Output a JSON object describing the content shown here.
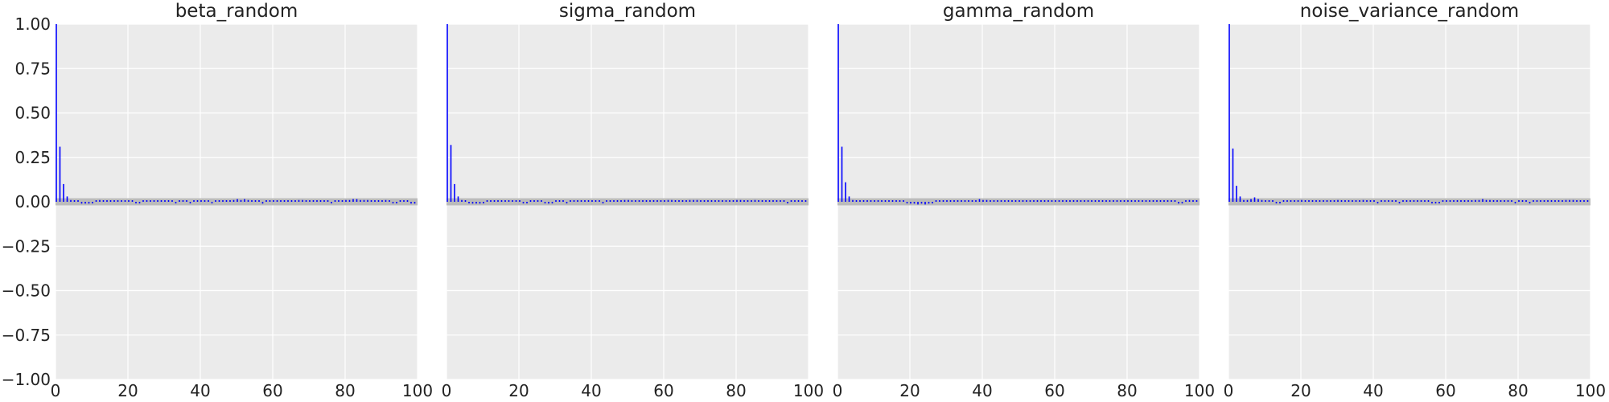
{
  "chart_data": [
    {
      "type": "bar",
      "title": "beta_random",
      "xlabel": "",
      "ylabel": "",
      "xlim": [
        0,
        100
      ],
      "ylim": [
        -1.0,
        1.0
      ],
      "xticks": [
        "0",
        "20",
        "40",
        "60",
        "80",
        "100"
      ],
      "yticks": [
        "−1.00",
        "−0.75",
        "−0.50",
        "−0.25",
        "0.00",
        "0.25",
        "0.50",
        "0.75",
        "1.00"
      ],
      "grid": true,
      "lags": [
        0,
        1,
        2,
        3,
        4,
        5,
        6,
        7,
        8,
        9,
        10,
        11,
        12,
        13,
        14,
        15,
        16,
        17,
        18,
        19,
        20,
        21,
        22,
        23,
        24,
        25,
        26,
        27,
        28,
        29,
        30,
        31,
        32,
        33,
        34,
        35,
        36,
        37,
        38,
        39,
        40,
        41,
        42,
        43,
        44,
        45,
        46,
        47,
        48,
        49,
        50,
        51,
        52,
        53,
        54,
        55,
        56,
        57,
        58,
        59,
        60,
        61,
        62,
        63,
        64,
        65,
        66,
        67,
        68,
        69,
        70,
        71,
        72,
        73,
        74,
        75,
        76,
        77,
        78,
        79,
        80,
        81,
        82,
        83,
        84,
        85,
        86,
        87,
        88,
        89,
        90,
        91,
        92,
        93,
        94,
        95,
        96,
        97,
        98,
        99
      ],
      "values": [
        1.0,
        0.31,
        0.1,
        0.03,
        0.01,
        0.005,
        0.0,
        -0.01,
        -0.01,
        -0.01,
        -0.005,
        0.005,
        0.01,
        0.0,
        0.005,
        0.005,
        0.0,
        0.0,
        0.005,
        0.005,
        0.0,
        0.005,
        -0.005,
        -0.005,
        0.0,
        0.005,
        0.005,
        0.0,
        0.0,
        0.005,
        0.005,
        0.0,
        0.0,
        -0.005,
        0.0,
        0.005,
        0.0,
        -0.005,
        0.0,
        0.005,
        0.005,
        0.005,
        0.0,
        -0.005,
        0.0,
        0.005,
        0.0,
        0.005,
        0.005,
        0.01,
        0.015,
        0.01,
        0.015,
        0.01,
        0.005,
        0.0,
        0.005,
        -0.01,
        0.0,
        0.005,
        0.005,
        0.0,
        0.005,
        0.0,
        0.005,
        0.0,
        0.005,
        0.01,
        0.01,
        0.005,
        0.005,
        0.0,
        0.005,
        0.0,
        0.005,
        0.0,
        -0.005,
        0.0,
        0.005,
        0.005,
        0.01,
        0.01,
        0.015,
        0.015,
        0.01,
        0.01,
        0.01,
        0.005,
        0.0,
        0.005,
        0.005,
        0.01,
        0.005,
        -0.005,
        -0.005,
        0.0,
        0.005,
        0.0,
        -0.01,
        -0.01
      ],
      "band": [
        -0.02,
        0.02
      ],
      "color": "#0000ff"
    },
    {
      "type": "bar",
      "title": "sigma_random",
      "xlabel": "",
      "ylabel": "",
      "xlim": [
        0,
        100
      ],
      "ylim": [
        -1.0,
        1.0
      ],
      "xticks": [
        "0",
        "20",
        "40",
        "60",
        "80",
        "100"
      ],
      "grid": true,
      "lags": [
        0,
        1,
        2,
        3,
        4,
        5,
        6,
        7,
        8,
        9,
        10,
        11,
        12,
        13,
        14,
        15,
        16,
        17,
        18,
        19,
        20,
        21,
        22,
        23,
        24,
        25,
        26,
        27,
        28,
        29,
        30,
        31,
        32,
        33,
        34,
        35,
        36,
        37,
        38,
        39,
        40,
        41,
        42,
        43,
        44,
        45,
        46,
        47,
        48,
        49,
        50,
        51,
        52,
        53,
        54,
        55,
        56,
        57,
        58,
        59,
        60,
        61,
        62,
        63,
        64,
        65,
        66,
        67,
        68,
        69,
        70,
        71,
        72,
        73,
        74,
        75,
        76,
        77,
        78,
        79,
        80,
        81,
        82,
        83,
        84,
        85,
        86,
        87,
        88,
        89,
        90,
        91,
        92,
        93,
        94,
        95,
        96,
        97,
        98,
        99
      ],
      "values": [
        1.0,
        0.32,
        0.1,
        0.03,
        0.01,
        0.0,
        -0.005,
        -0.01,
        -0.01,
        -0.01,
        -0.005,
        0.0,
        0.005,
        0.0,
        0.005,
        0.0,
        0.005,
        0.005,
        0.0,
        0.005,
        0.005,
        -0.005,
        -0.005,
        0.0,
        0.005,
        0.0,
        0.005,
        -0.005,
        -0.01,
        -0.005,
        0.0,
        0.005,
        0.005,
        -0.005,
        0.0,
        0.005,
        0.005,
        0.0,
        0.0,
        0.005,
        0.005,
        0.005,
        0.0,
        -0.005,
        0.0,
        0.005,
        0.0,
        0.005,
        0.005,
        0.01,
        0.01,
        0.005,
        0.005,
        0.0,
        0.005,
        0.005,
        0.005,
        0.005,
        0.0,
        0.005,
        0.005,
        0.01,
        0.01,
        0.005,
        0.005,
        0.0,
        0.005,
        0.01,
        0.01,
        0.01,
        0.005,
        0.005,
        0.0,
        0.005,
        0.0,
        0.0,
        0.005,
        0.005,
        0.0,
        0.005,
        0.01,
        0.01,
        0.005,
        0.005,
        0.005,
        0.01,
        0.005,
        0.005,
        0.0,
        0.005,
        0.0,
        0.005,
        0.005,
        0.0,
        -0.005,
        0.005,
        0.005,
        0.0,
        0.005,
        0.005
      ],
      "band": [
        -0.02,
        0.02
      ],
      "color": "#0000ff"
    },
    {
      "type": "bar",
      "title": "gamma_random",
      "xlabel": "",
      "ylabel": "",
      "xlim": [
        0,
        100
      ],
      "ylim": [
        -1.0,
        1.0
      ],
      "xticks": [
        "0",
        "20",
        "40",
        "60",
        "80",
        "100"
      ],
      "grid": true,
      "lags": [
        0,
        1,
        2,
        3,
        4,
        5,
        6,
        7,
        8,
        9,
        10,
        11,
        12,
        13,
        14,
        15,
        16,
        17,
        18,
        19,
        20,
        21,
        22,
        23,
        24,
        25,
        26,
        27,
        28,
        29,
        30,
        31,
        32,
        33,
        34,
        35,
        36,
        37,
        38,
        39,
        40,
        41,
        42,
        43,
        44,
        45,
        46,
        47,
        48,
        49,
        50,
        51,
        52,
        53,
        54,
        55,
        56,
        57,
        58,
        59,
        60,
        61,
        62,
        63,
        64,
        65,
        66,
        67,
        68,
        69,
        70,
        71,
        72,
        73,
        74,
        75,
        76,
        77,
        78,
        79,
        80,
        81,
        82,
        83,
        84,
        85,
        86,
        87,
        88,
        89,
        90,
        91,
        92,
        93,
        94,
        95,
        96,
        97,
        98,
        99
      ],
      "values": [
        1.0,
        0.31,
        0.11,
        0.03,
        0.01,
        0.005,
        0.0,
        0.0,
        0.005,
        0.005,
        0.0,
        0.005,
        0.005,
        0.0,
        0.005,
        0.005,
        0.0,
        0.005,
        0.005,
        -0.005,
        -0.01,
        -0.01,
        -0.015,
        -0.01,
        -0.015,
        -0.01,
        -0.005,
        0.0,
        0.005,
        0.005,
        0.005,
        0.005,
        0.0,
        0.005,
        0.0,
        0.005,
        0.005,
        0.0,
        0.005,
        0.015,
        0.01,
        0.01,
        0.005,
        0.005,
        0.0,
        0.005,
        0.0,
        0.005,
        0.0,
        0.005,
        0.005,
        0.005,
        0.0,
        0.005,
        0.005,
        0.0,
        0.005,
        0.005,
        0.005,
        0.005,
        0.0,
        0.005,
        0.005,
        0.0,
        0.005,
        0.0,
        0.005,
        0.005,
        0.0,
        0.005,
        0.005,
        0.0,
        0.005,
        0.005,
        0.0,
        0.005,
        0.005,
        0.005,
        0.0,
        0.005,
        0.0,
        0.005,
        0.005,
        0.0,
        0.005,
        0.005,
        0.0,
        0.005,
        0.005,
        0.005,
        0.0,
        0.005,
        0.005,
        0.0,
        -0.01,
        -0.005,
        0.005,
        0.01,
        0.005,
        0.0
      ],
      "band": [
        -0.02,
        0.02
      ],
      "color": "#0000ff"
    },
    {
      "type": "bar",
      "title": "noise_variance_random",
      "xlabel": "",
      "ylabel": "",
      "xlim": [
        0,
        100
      ],
      "ylim": [
        -1.0,
        1.0
      ],
      "xticks": [
        "0",
        "20",
        "40",
        "60",
        "80",
        "100"
      ],
      "grid": true,
      "lags": [
        0,
        1,
        2,
        3,
        4,
        5,
        6,
        7,
        8,
        9,
        10,
        11,
        12,
        13,
        14,
        15,
        16,
        17,
        18,
        19,
        20,
        21,
        22,
        23,
        24,
        25,
        26,
        27,
        28,
        29,
        30,
        31,
        32,
        33,
        34,
        35,
        36,
        37,
        38,
        39,
        40,
        41,
        42,
        43,
        44,
        45,
        46,
        47,
        48,
        49,
        50,
        51,
        52,
        53,
        54,
        55,
        56,
        57,
        58,
        59,
        60,
        61,
        62,
        63,
        64,
        65,
        66,
        67,
        68,
        69,
        70,
        71,
        72,
        73,
        74,
        75,
        76,
        77,
        78,
        79,
        80,
        81,
        82,
        83,
        84,
        85,
        86,
        87,
        88,
        89,
        90,
        91,
        92,
        93,
        94,
        95,
        96,
        97,
        98,
        99
      ],
      "values": [
        1.0,
        0.3,
        0.09,
        0.03,
        0.01,
        0.01,
        0.015,
        0.025,
        0.015,
        0.01,
        0.005,
        0.005,
        0.0,
        -0.005,
        -0.005,
        0.0,
        0.005,
        0.0,
        0.005,
        0.005,
        0.01,
        0.005,
        0.0,
        0.005,
        0.005,
        0.0,
        0.005,
        0.0,
        0.005,
        0.005,
        0.01,
        0.005,
        0.005,
        0.0,
        0.005,
        0.005,
        0.005,
        0.01,
        0.005,
        0.005,
        0.0,
        -0.005,
        0.005,
        0.0,
        0.005,
        0.005,
        0.0,
        -0.005,
        0.0,
        0.005,
        0.005,
        0.005,
        0.0,
        0.005,
        0.0,
        0.005,
        -0.005,
        -0.005,
        -0.005,
        0.0,
        0.005,
        0.005,
        0.0,
        0.005,
        0.005,
        0.0,
        0.005,
        0.005,
        0.01,
        0.01,
        0.015,
        0.01,
        0.01,
        0.005,
        0.005,
        0.0,
        0.005,
        0.005,
        0.0,
        -0.005,
        0.005,
        0.005,
        0.0,
        -0.005,
        0.0,
        0.005,
        0.005,
        0.0,
        0.005,
        0.0,
        0.005,
        0.0,
        0.005,
        0.01,
        0.01,
        0.01,
        0.005,
        0.005,
        0.0,
        0.005
      ],
      "band": [
        -0.02,
        0.02
      ],
      "color": "#0000ff"
    }
  ],
  "colors": {
    "plot_bg": "#ebebeb",
    "grid": "#ffffff",
    "band": "#bbbbbb",
    "bar": "#0000ff",
    "text": "#222222"
  }
}
